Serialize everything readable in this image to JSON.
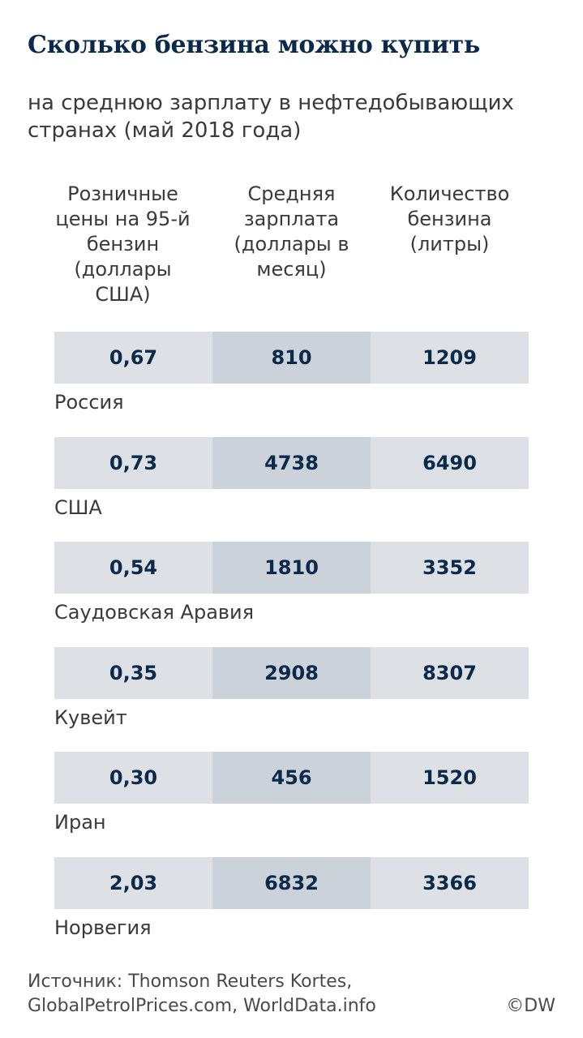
{
  "title": "Сколько бензина можно купить",
  "subtitle": "на среднюю зарплату в нефтедобывающих странах (май 2018 года)",
  "columns": [
    "Розничные цены на 95-й бензин (доллары США)",
    "Средняя зарплата (доллары в месяц)",
    "Количество бензина (литры)"
  ],
  "chart_data": {
    "type": "table",
    "title": "Сколько бензина можно купить",
    "subtitle": "на среднюю зарплату в нефтедобывающих странах (май 2018 года)",
    "columns": [
      "Розничные цены на 95-й бензин (доллары США)",
      "Средняя зарплата (доллары в месяц)",
      "Количество бензина (литры)"
    ],
    "rows": [
      {
        "country": "Россия",
        "values": [
          "0,67",
          "810",
          "1209"
        ]
      },
      {
        "country": "США",
        "values": [
          "0,73",
          "4738",
          "6490"
        ]
      },
      {
        "country": "Саудовская Аравия",
        "values": [
          "0,54",
          "1810",
          "3352"
        ]
      },
      {
        "country": "Кувейт",
        "values": [
          "0,35",
          "2908",
          "8307"
        ]
      },
      {
        "country": "Иран",
        "values": [
          "0,30",
          "456",
          "1520"
        ]
      },
      {
        "country": "Норвегия",
        "values": [
          "2,03",
          "6832",
          "3366"
        ]
      }
    ]
  },
  "source_line1": "Источник: Thomson Reuters Kortes,",
  "source_line2": "GlobalPetrolPrices.com, WorldData.info",
  "copyright": "©DW",
  "colors": {
    "title": "#0b2a4a",
    "cell_light": "#dde1e6",
    "cell_mid": "#cbd2da"
  }
}
